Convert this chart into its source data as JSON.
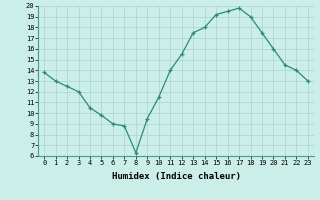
{
  "x": [
    0,
    1,
    2,
    3,
    4,
    5,
    6,
    7,
    8,
    9,
    10,
    11,
    12,
    13,
    14,
    15,
    16,
    17,
    18,
    19,
    20,
    21,
    22,
    23
  ],
  "y": [
    13.8,
    13.0,
    12.5,
    12.0,
    10.5,
    9.8,
    9.0,
    8.8,
    6.3,
    9.5,
    11.5,
    14.0,
    15.5,
    17.5,
    18.0,
    19.2,
    19.5,
    19.8,
    19.0,
    17.5,
    16.0,
    14.5,
    14.0,
    13.0
  ],
  "xlabel": "Humidex (Indice chaleur)",
  "ylim": [
    6,
    20
  ],
  "xlim": [
    -0.5,
    23.5
  ],
  "yticks": [
    6,
    7,
    8,
    9,
    10,
    11,
    12,
    13,
    14,
    15,
    16,
    17,
    18,
    19,
    20
  ],
  "xticks": [
    0,
    1,
    2,
    3,
    4,
    5,
    6,
    7,
    8,
    9,
    10,
    11,
    12,
    13,
    14,
    15,
    16,
    17,
    18,
    19,
    20,
    21,
    22,
    23
  ],
  "line_color": "#2e8b74",
  "marker": "+",
  "bg_color": "#cceee8",
  "grid_color": "#aad4cc",
  "tick_fontsize": 5.0,
  "xlabel_fontsize": 6.5
}
